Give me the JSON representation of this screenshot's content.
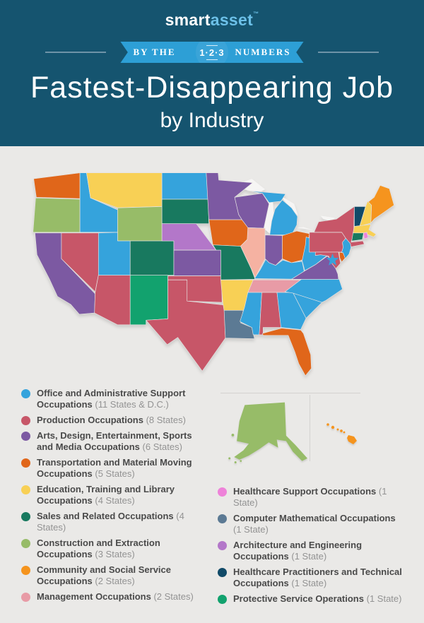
{
  "header": {
    "logo": {
      "part1": "smart",
      "part2": "asset",
      "tm": "™"
    },
    "ribbon": {
      "left_text": "BY THE",
      "badge_text": "1·2·3",
      "right_text": "NUMBERS"
    },
    "title_line1": "Fastest-Disappearing Job",
    "title_line2": "by Industry"
  },
  "colors": {
    "header_bg": "#15546F",
    "ribbon_blue": "#2D9FD6",
    "ribbon_badge": "#3AA4D8",
    "logo_accent": "#6CC0E8",
    "page_bg": "#EAE9E7",
    "legend_name_text": "#4A4A4A",
    "legend_count_text": "#939393",
    "inset_divider": "#D4D2D0",
    "lake_fill": "#F6F5F4",
    "state_border": "#E6E4E2"
  },
  "categories": [
    {
      "key": "office",
      "label": "Office and Administrative Support Occupations",
      "count": "(11 States & D.C.)",
      "color": "#35A3DC"
    },
    {
      "key": "production",
      "label": "Production Occupations",
      "count": "(8 States)",
      "color": "#C75668"
    },
    {
      "key": "arts",
      "label": "Arts, Design, Entertainment, Sports and Media Occupations",
      "count": "(6 States)",
      "color": "#7C59A2"
    },
    {
      "key": "transportation",
      "label": "Transportation and Material Moving Occupations",
      "count": "(5 States)",
      "color": "#E0661A"
    },
    {
      "key": "education",
      "label": "Education, Training and Library Occupations",
      "count": "(4 States)",
      "color": "#F8D055"
    },
    {
      "key": "sales",
      "label": "Sales and Related Occupations",
      "count": "(4 States)",
      "color": "#18795F"
    },
    {
      "key": "construction",
      "label": "Construction and Extraction Occupations",
      "count": "(3 States)",
      "color": "#97BC68"
    },
    {
      "key": "community",
      "label": "Community and Social Service Occupations",
      "count": "(2 States)",
      "color": "#F5941E"
    },
    {
      "key": "management",
      "label": "Management Occupations",
      "count": "(2 States)",
      "color": "#E89BA6"
    },
    {
      "key": "healthcare_support",
      "label": "Healthcare Support Occupations",
      "count": "(1 State)",
      "color": "#EE82D9"
    },
    {
      "key": "computer_math",
      "label": "Computer Mathematical Occupations",
      "count": "(1 State)",
      "color": "#5C7A94"
    },
    {
      "key": "arch_eng",
      "label": "Architecture and Engineering Occupations",
      "count": "(1 State)",
      "color": "#B377C9"
    },
    {
      "key": "healthcare_pract",
      "label": "Healthcare Practitioners and Technical Occupations",
      "count": "(1 State)",
      "color": "#114A68"
    },
    {
      "key": "protective",
      "label": "Protective Service Operations",
      "count": "(1 State)",
      "color": "#12A26E"
    }
  ],
  "map": {
    "state_categories": {
      "WA": "transportation",
      "OR": "construction",
      "CA": "arts",
      "NV": "production",
      "ID": "office",
      "MT": "education",
      "WY": "construction",
      "UT": "office",
      "CO": "sales",
      "AZ": "production",
      "NM": "protective",
      "ND": "office",
      "SD": "sales",
      "NE": "arch_eng",
      "KS": "arts",
      "OK": "production",
      "TX": "production",
      "MN": "arts",
      "IA": "transportation",
      "MO": "sales",
      "AR": "education",
      "LA": "computer_math",
      "WI": "arts",
      "IL": "management",
      "MI": "office",
      "IN": "arts",
      "OH": "transportation",
      "KY": "office",
      "TN": "management",
      "MS": "office",
      "AL": "production",
      "GA": "office",
      "FL": "transportation",
      "SC": "office",
      "NC": "office",
      "VA": "arts",
      "WV": "office",
      "PA": "production",
      "NY": "production",
      "NJ": "office",
      "MD": "production",
      "DE": "transportation",
      "VT": "healthcare_pract",
      "NH": "education",
      "MA": "education",
      "CT": "sales",
      "RI": "healthcare_support",
      "ME": "community",
      "AK": "construction",
      "HI": "community",
      "DC": "office"
    },
    "state_color_overrides": {
      "IL": "#F5B2A2"
    },
    "dc_marker": {
      "label": "D.C.",
      "shape": "star",
      "category": "office"
    }
  }
}
